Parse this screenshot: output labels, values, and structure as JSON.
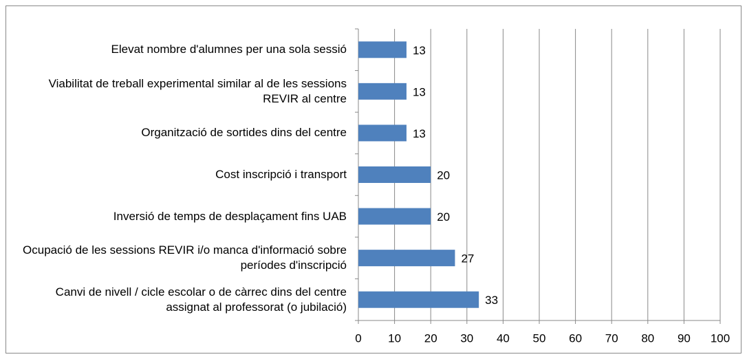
{
  "chart_data": {
    "type": "bar",
    "orientation": "horizontal",
    "categories": [
      "Elevat nombre d'alumnes per una sola sessió",
      "Viabilitat de treball experimental similar al de les sessions REVIR al centre",
      "Organització de sortides dins del centre",
      "Cost inscripció i transport",
      "Inversió de temps de desplaçament fins UAB",
      "Ocupació de les sessions REVIR i/o manca d'informació sobre períodes d'inscripció",
      "Canvi de nivell / cicle escolar o de càrrec dins del centre assignat al professorat (o jubilació)"
    ],
    "values": [
      13.3,
      13.3,
      13.3,
      20,
      20,
      26.7,
      33.3
    ],
    "value_labels": [
      "13",
      "13",
      "13",
      "20",
      "20",
      "27",
      "33"
    ],
    "color": "#4f81bd",
    "xlim": [
      0,
      100
    ],
    "xticks": [
      0,
      10,
      20,
      30,
      40,
      50,
      60,
      70,
      80,
      90,
      100
    ],
    "grid": true
  }
}
